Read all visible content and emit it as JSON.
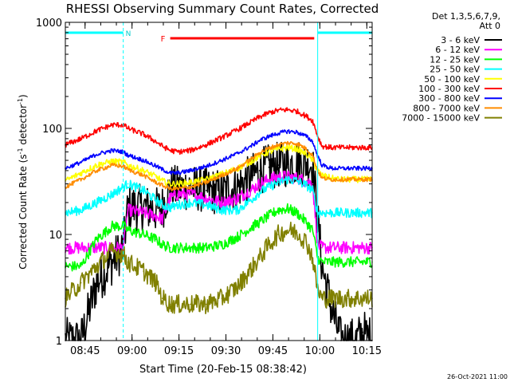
{
  "chart_data": {
    "type": "line",
    "title": "RHESSI Observing Summary Count Rates, Corrected",
    "xlabel": "Start Time (20-Feb-15 08:38:42)",
    "ylabel_main": "Corrected Count Rate (s",
    "ylabel_sup1": "-1",
    "ylabel_mid": " detector",
    "ylabel_sup2": "-1",
    "ylabel_end": ")",
    "y_scale": "log",
    "ylim": [
      1,
      1000
    ],
    "x_range_minutes": [
      0,
      98
    ],
    "x_ticks": [
      {
        "label": "08:45",
        "t": 6.3
      },
      {
        "label": "09:00",
        "t": 21.3
      },
      {
        "label": "09:15",
        "t": 36.3
      },
      {
        "label": "09:30",
        "t": 51.3
      },
      {
        "label": "09:45",
        "t": 66.3
      },
      {
        "label": "10:00",
        "t": 81.3
      },
      {
        "label": "10:15",
        "t": 96.3
      }
    ],
    "y_ticks": [
      {
        "label": "1",
        "v": 1
      },
      {
        "label": "10",
        "v": 10
      },
      {
        "label": "100",
        "v": 100
      },
      {
        "label": "1000",
        "v": 1000
      }
    ],
    "legend_header": [
      "Det 1,3,5,6,7,9,",
      "Att 0"
    ],
    "annotations": {
      "night_label": "N",
      "night_intervals": [
        [
          0,
          18.5
        ],
        [
          80.6,
          98
        ]
      ],
      "flare_label": "F",
      "flare_interval": [
        33.5,
        79.5
      ]
    },
    "series": [
      {
        "name": "3 - 6 keV",
        "color": "#000000",
        "x": [
          0,
          5,
          10,
          15,
          18.5,
          20,
          25,
          29,
          31,
          33.5,
          36,
          40,
          45,
          50,
          55,
          60,
          62,
          65,
          68,
          71,
          74,
          77,
          79,
          80.6,
          82,
          85,
          88,
          90,
          93,
          95,
          98
        ],
        "y": [
          1,
          1,
          3.5,
          5.5,
          7.5,
          18,
          18,
          17,
          18,
          28,
          27,
          28,
          26,
          25,
          28,
          36,
          40,
          43,
          45,
          46,
          48,
          48,
          46,
          14,
          5,
          2,
          1,
          1,
          1,
          1.2,
          1
        ]
      },
      {
        "name": "6 - 12 keV",
        "color": "#ff00ff",
        "x": [
          0,
          5,
          10,
          15,
          18.5,
          20,
          25,
          29,
          31,
          33.5,
          36,
          40,
          45,
          50,
          55,
          60,
          62,
          65,
          68,
          71,
          74,
          77,
          79,
          80.6,
          82,
          85,
          88,
          90,
          93,
          95,
          98
        ],
        "y": [
          7.5,
          7.5,
          7.5,
          7.5,
          7.5,
          17,
          16,
          15,
          14,
          22,
          24,
          24,
          22,
          20,
          22,
          27,
          30,
          33,
          35,
          35,
          34,
          32,
          30,
          8,
          7.5,
          7.5,
          7.5,
          7.5,
          7.5,
          7.5,
          7.5
        ]
      },
      {
        "name": "12 - 25 keV",
        "color": "#00ff00",
        "x": [
          0,
          5,
          10,
          15,
          18.5,
          20,
          25,
          29,
          31,
          33.5,
          36,
          40,
          45,
          50,
          55,
          60,
          62,
          65,
          68,
          71,
          74,
          77,
          79,
          80.6,
          82,
          85,
          88,
          90,
          93,
          95,
          98
        ],
        "y": [
          5,
          5,
          9,
          12,
          12,
          11,
          10,
          9,
          8,
          7.5,
          7.5,
          7.5,
          7.5,
          8,
          9.5,
          12,
          13,
          15,
          17,
          17.5,
          16,
          13,
          11,
          6,
          5.5,
          5.5,
          5.5,
          5.5,
          5.5,
          5.5,
          5.5
        ]
      },
      {
        "name": "25 - 50 keV",
        "color": "#00ffff",
        "x": [
          0,
          5,
          10,
          15,
          18.5,
          20,
          25,
          29,
          31,
          33.5,
          36,
          40,
          45,
          50,
          55,
          60,
          62,
          65,
          68,
          71,
          74,
          77,
          79,
          80.6,
          82,
          85,
          88,
          90,
          93,
          95,
          98
        ],
        "y": [
          16,
          17,
          20,
          24,
          28,
          30,
          26,
          21,
          19,
          18,
          19,
          20,
          19,
          17,
          17,
          22,
          25,
          28,
          31,
          33,
          32,
          29,
          26,
          16,
          16,
          16,
          16,
          16,
          16,
          16,
          16
        ]
      },
      {
        "name": "50 - 100 keV",
        "color": "#ffff00",
        "x": [
          0,
          5,
          10,
          15,
          18.5,
          20,
          25,
          29,
          31,
          33.5,
          36,
          40,
          45,
          50,
          55,
          60,
          62,
          65,
          68,
          71,
          74,
          77,
          79,
          80.6,
          82,
          85,
          88,
          90,
          93,
          95,
          98
        ],
        "y": [
          32,
          38,
          45,
          49,
          48,
          45,
          40,
          35,
          32,
          30,
          30,
          31,
          33,
          37,
          42,
          50,
          55,
          60,
          64,
          66,
          64,
          57,
          50,
          40,
          36,
          34,
          33,
          33,
          33,
          33,
          33
        ]
      },
      {
        "name": "100 - 300 keV",
        "color": "#ff0000",
        "x": [
          0,
          5,
          10,
          15,
          18.5,
          20,
          25,
          29,
          31,
          33.5,
          36,
          40,
          45,
          50,
          55,
          60,
          62,
          65,
          68,
          71,
          74,
          77,
          79,
          80.6,
          82,
          85,
          88,
          90,
          93,
          95,
          98
        ],
        "y": [
          70,
          80,
          95,
          108,
          108,
          100,
          88,
          75,
          68,
          62,
          60,
          62,
          70,
          82,
          97,
          118,
          128,
          140,
          148,
          150,
          145,
          130,
          118,
          85,
          68,
          66,
          66,
          66,
          66,
          66,
          66
        ]
      },
      {
        "name": "300 - 800 keV",
        "color": "#0000ff",
        "x": [
          0,
          5,
          10,
          15,
          18.5,
          20,
          25,
          29,
          31,
          33.5,
          36,
          40,
          45,
          50,
          55,
          60,
          62,
          65,
          68,
          71,
          74,
          77,
          79,
          80.6,
          82,
          85,
          88,
          90,
          93,
          95,
          98
        ],
        "y": [
          42,
          48,
          57,
          62,
          60,
          56,
          50,
          44,
          41,
          38,
          38,
          40,
          44,
          50,
          58,
          70,
          77,
          84,
          90,
          94,
          92,
          84,
          75,
          55,
          45,
          42,
          42,
          42,
          42,
          42,
          42
        ]
      },
      {
        "name": "800 - 7000 keV",
        "color": "#ff8c00",
        "x": [
          0,
          5,
          10,
          15,
          18.5,
          20,
          25,
          29,
          31,
          33.5,
          36,
          40,
          45,
          50,
          55,
          60,
          62,
          65,
          68,
          71,
          74,
          77,
          79,
          80.6,
          82,
          85,
          88,
          90,
          93,
          95,
          98
        ],
        "y": [
          28,
          33,
          40,
          45,
          44,
          41,
          36,
          31,
          29,
          27,
          27,
          28,
          31,
          36,
          42,
          53,
          59,
          65,
          70,
          73,
          72,
          64,
          56,
          40,
          34,
          33,
          33,
          33,
          33,
          33,
          33
        ]
      },
      {
        "name": "7000 - 15000 keV",
        "color": "#808000",
        "x": [
          0,
          5,
          10,
          15,
          18.5,
          20,
          25,
          29,
          31,
          33.5,
          36,
          40,
          45,
          50,
          55,
          60,
          62,
          65,
          68,
          71,
          74,
          77,
          79,
          80.6,
          82,
          85,
          88,
          90,
          93,
          95,
          98
        ],
        "y": [
          2.5,
          3.5,
          5,
          7,
          6.5,
          5.5,
          4.5,
          3.5,
          2.5,
          2.2,
          2.2,
          2.2,
          2.2,
          2.5,
          3.2,
          5,
          6,
          8,
          10,
          11,
          10.5,
          8.5,
          6,
          3,
          2.5,
          2.5,
          2.5,
          2.5,
          2.5,
          2.5,
          2.5
        ]
      }
    ]
  },
  "footer_timestamp": "26-Oct-2021 11:00"
}
